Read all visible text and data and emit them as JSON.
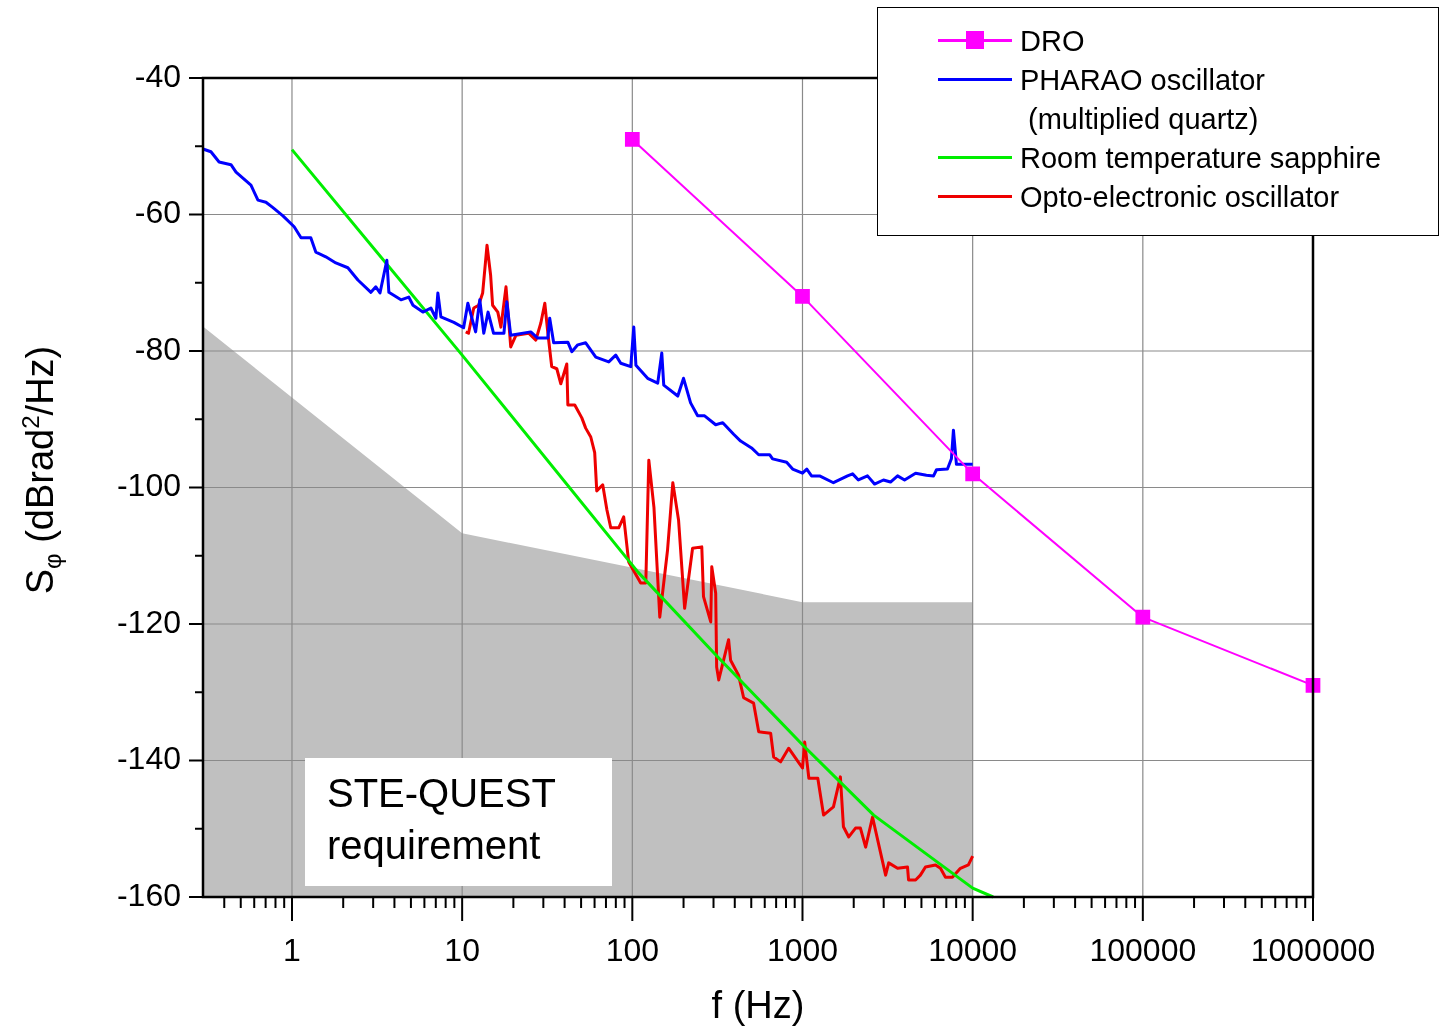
{
  "chart_data": {
    "type": "line",
    "xlabel": "f (Hz)",
    "ylabel": "S$_{φ}$ (dBrad$^{2}$/Hz)",
    "log": "x",
    "grid": true,
    "legend": "top right",
    "xlim": [
      0.3,
      1000000
    ],
    "ylim": [
      -160,
      -40
    ],
    "xticks": [
      {
        "value": 0.4,
        "label": null
      },
      {
        "value": 0.5,
        "label": null
      },
      {
        "value": 0.6,
        "label": null
      },
      {
        "value": 0.7,
        "label": null
      },
      {
        "value": 0.8,
        "label": null
      },
      {
        "value": 0.9,
        "label": null
      },
      1,
      {
        "value": 2,
        "label": null
      },
      {
        "value": 3,
        "label": null
      },
      {
        "value": 4,
        "label": null
      },
      {
        "value": 5,
        "label": null
      },
      {
        "value": 6,
        "label": null
      },
      {
        "value": 7,
        "label": null
      },
      {
        "value": 8,
        "label": null
      },
      {
        "value": 9,
        "label": null
      },
      10,
      {
        "value": 20,
        "label": null
      },
      {
        "value": 30,
        "label": null
      },
      {
        "value": 40,
        "label": null
      },
      {
        "value": 50,
        "label": null
      },
      {
        "value": 60,
        "label": null
      },
      {
        "value": 70,
        "label": null
      },
      {
        "value": 80,
        "label": null
      },
      {
        "value": 90,
        "label": null
      },
      100,
      {
        "value": 200,
        "label": null
      },
      {
        "value": 300,
        "label": null
      },
      {
        "value": 400,
        "label": null
      },
      {
        "value": 500,
        "label": null
      },
      {
        "value": 600,
        "label": null
      },
      {
        "value": 700,
        "label": null
      },
      {
        "value": 800,
        "label": null
      },
      {
        "value": 900,
        "label": null
      },
      1000,
      {
        "value": 2000,
        "label": null
      },
      {
        "value": 3000,
        "label": null
      },
      {
        "value": 4000,
        "label": null
      },
      {
        "value": 5000,
        "label": null
      },
      {
        "value": 6000,
        "label": null
      },
      {
        "value": 7000,
        "label": null
      },
      {
        "value": 8000,
        "label": null
      },
      {
        "value": 9000,
        "label": null
      },
      10000,
      {
        "value": 20000,
        "label": null
      },
      {
        "value": 30000,
        "label": null
      },
      {
        "value": 40000,
        "label": null
      },
      {
        "value": 50000,
        "label": null
      },
      {
        "value": 60000,
        "label": null
      },
      {
        "value": 70000,
        "label": null
      },
      {
        "value": 80000,
        "label": null
      },
      {
        "value": 90000,
        "label": null
      },
      100000,
      {
        "value": 200000,
        "label": null
      },
      {
        "value": 300000,
        "label": null
      },
      {
        "value": 400000,
        "label": null
      },
      {
        "value": 500000,
        "label": null
      },
      {
        "value": 600000,
        "label": null
      },
      {
        "value": 700000,
        "label": null
      },
      {
        "value": 800000,
        "label": null
      },
      {
        "value": 900000,
        "label": null
      },
      1000000
    ],
    "yticks": [
      -160,
      {
        "value": -150,
        "label": null
      },
      -140,
      {
        "value": -130,
        "label": null
      },
      -120,
      {
        "value": -110,
        "label": null
      },
      -100,
      {
        "value": -90,
        "label": null
      },
      -80,
      {
        "value": -70,
        "label": null
      },
      -60,
      {
        "value": -50,
        "label": null
      },
      -40
    ],
    "series": [
      {
        "name": "DRO",
        "type": "line",
        "marker": "square",
        "color": "#ff00ff",
        "x": [
          100,
          1000,
          10000,
          100000,
          1000000
        ],
        "values": [
          -49,
          -72,
          -98,
          -119,
          -129
        ]
      },
      {
        "name": "PHARAO oscillator\n (multiplied quartz)",
        "type": "line",
        "marker": "none",
        "color": "#0000ff",
        "x": [
          0.3,
          0.334,
          0.373,
          0.438,
          0.469,
          0.574,
          0.631,
          0.703,
          0.773,
          0.885,
          1.03,
          1.13,
          1.29,
          1.38,
          1.58,
          1.81,
          2.13,
          2.44,
          2.91,
          3.11,
          3.29,
          3.61,
          3.71,
          4.37,
          4.86,
          5.14,
          5.88,
          6.55,
          7.01,
          7.2,
          7.5,
          8.94,
          10.2,
          10.8,
          12,
          12.7,
          13.4,
          14.2,
          15.3,
          17.6,
          18.3,
          19.3,
          25.3,
          27.8,
          31.9,
          32.7,
          34.5,
          41.8,
          44.1,
          47.8,
          53.2,
          61,
          72.7,
          79.9,
          85.5,
          97.9,
          102,
          105,
          123,
          141,
          149,
          153,
          185,
          200,
          220,
          242,
          266,
          309,
          340,
          394,
          433,
          502,
          553,
          641,
          667,
          807,
          875,
          1000,
          1060,
          1130,
          1260,
          1520,
          1840,
          1970,
          2130,
          2410,
          2650,
          2990,
          3290,
          3620,
          3980,
          4620,
          5350,
          5890,
          6130,
          7110,
          7500,
          7710,
          8030,
          10000
        ],
        "values": [
          -50.4,
          -50.8,
          -52.3,
          -52.7,
          -53.8,
          -55.7,
          -57.9,
          -58.2,
          -59,
          -60.2,
          -61.8,
          -63.4,
          -63.4,
          -65.5,
          -66.2,
          -67.1,
          -67.8,
          -69.6,
          -71.4,
          -70.6,
          -71.5,
          -66.7,
          -71.4,
          -72.5,
          -72.1,
          -73.3,
          -74.3,
          -73.7,
          -75.2,
          -71.5,
          -75,
          -75.8,
          -76.6,
          -73,
          -77.2,
          -72.5,
          -77.4,
          -74.3,
          -77.4,
          -77.4,
          -72.8,
          -77.7,
          -77.2,
          -78.1,
          -78.1,
          -75.2,
          -78.8,
          -78.7,
          -80.1,
          -79.1,
          -78.8,
          -80.9,
          -81.6,
          -80.6,
          -81.8,
          -82.3,
          -76.5,
          -82.1,
          -84,
          -84.7,
          -80.3,
          -85,
          -86.6,
          -84,
          -87.6,
          -89.5,
          -89.5,
          -90.8,
          -90.5,
          -92.2,
          -93.2,
          -94.2,
          -95.2,
          -95.2,
          -95.8,
          -96.3,
          -97.3,
          -97.9,
          -97.3,
          -98.3,
          -98.3,
          -99.3,
          -98.3,
          -98,
          -98.9,
          -98.3,
          -99.5,
          -98.9,
          -99.2,
          -98.3,
          -98.9,
          -97.9,
          -98.2,
          -98.3,
          -97.4,
          -97.3,
          -95.8,
          -91.6,
          -96.6,
          -96.6
        ]
      },
      {
        "name": "Room temperature sapphire",
        "type": "line",
        "marker": "none",
        "color": "#00ee00",
        "x": [
          1,
          10,
          108,
          301,
          1000,
          2620,
          10000,
          13200
        ],
        "values": [
          -50.5,
          -80.6,
          -112.4,
          -124.2,
          -137.7,
          -148,
          -158.7,
          -160
        ]
      },
      {
        "name": "Opto-electronic oscillator",
        "type": "line",
        "marker": "none",
        "color": "#ee0000",
        "x": [
          10.5,
          10.9,
          11.7,
          12.5,
          13.2,
          14,
          14.7,
          15.1,
          16.2,
          16.9,
          18.1,
          19.3,
          20.7,
          24.6,
          27.1,
          29,
          30.6,
          31.9,
          33.6,
          36,
          38,
          41.2,
          41.8,
          45.9,
          50.5,
          53.2,
          57,
          60.1,
          61.8,
          67,
          70.8,
          74.7,
          83.2,
          89,
          95.2,
          112,
          120,
          125,
          134,
          145,
          161,
          173,
          187,
          203,
          226,
          256,
          262,
          289,
          293,
          309,
          313,
          322,
          368,
          378,
          421,
          451,
          516,
          553,
          650,
          677,
          744,
          829,
          1000,
          1030,
          1090,
          1230,
          1330,
          1520,
          1670,
          1740,
          1870,
          2050,
          2190,
          2350,
          2580,
          3080,
          3210,
          3620,
          4140,
          4200,
          4620,
          4930,
          5280,
          6050,
          6470,
          6920,
          7600,
          8470,
          9440,
          10000
        ],
        "values": [
          -77.2,
          -77.4,
          -73.7,
          -73.3,
          -71.5,
          -64.5,
          -68.9,
          -73.3,
          -74.3,
          -76.5,
          -70.6,
          -79.4,
          -77.7,
          -77.4,
          -78.4,
          -75.9,
          -73,
          -77.4,
          -82.3,
          -82.6,
          -84.8,
          -81.9,
          -87.9,
          -87.9,
          -89.8,
          -91.3,
          -92.6,
          -94.9,
          -100.5,
          -99.6,
          -103.2,
          -105.9,
          -105.9,
          -104.3,
          -110.9,
          -114,
          -114,
          -96,
          -102.9,
          -119,
          -109.2,
          -99.3,
          -104.8,
          -117.7,
          -108.9,
          -108.7,
          -116,
          -119.7,
          -111.6,
          -115.5,
          -126.3,
          -128.2,
          -122.3,
          -125.3,
          -127.5,
          -130.8,
          -131.6,
          -135.8,
          -136,
          -139.5,
          -140.2,
          -138.2,
          -141.1,
          -137.3,
          -142.6,
          -142.6,
          -148,
          -146.8,
          -142.4,
          -149.7,
          -151.2,
          -149.9,
          -149.9,
          -152.7,
          -148.3,
          -156.8,
          -155,
          -155.8,
          -155.6,
          -157.5,
          -157.5,
          -156.8,
          -155.6,
          -155.3,
          -155.8,
          -157.1,
          -157.1,
          -155.8,
          -155.3,
          -154
        ]
      },
      {
        "name": "STE-QUEST\nrequirement",
        "type": "area",
        "color": "#c0c0c0",
        "x": [
          0.3,
          0.3,
          10,
          1000,
          10000,
          10000
        ],
        "values": [
          -160,
          -76.4,
          -106.7,
          -116.8,
          -116.8,
          -160
        ]
      }
    ]
  }
}
